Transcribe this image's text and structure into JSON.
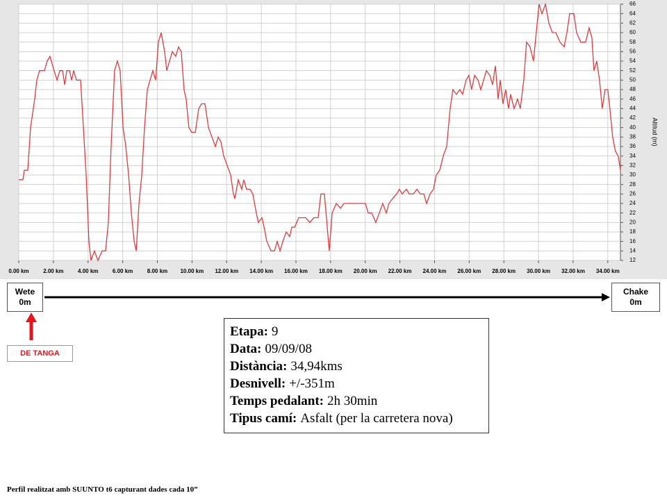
{
  "chart_data": {
    "type": "line",
    "color": "#e03a3e",
    "grid": true,
    "y_axis_label": "Altitud (m)",
    "x": [
      0,
      0.24,
      0.32,
      0.52,
      0.68,
      0.92,
      1.04,
      1.2,
      1.48,
      1.64,
      1.8,
      2.04,
      2.21,
      2.37,
      2.53,
      2.65,
      2.77,
      2.93,
      3.05,
      3.17,
      3.33,
      3.57,
      3.73,
      3.89,
      4.05,
      4.17,
      4.37,
      4.57,
      4.81,
      5.01,
      5.17,
      5.33,
      5.53,
      5.69,
      5.85,
      6.02,
      6.18,
      6.34,
      6.5,
      6.66,
      6.78,
      6.94,
      7.1,
      7.26,
      7.42,
      7.58,
      7.74,
      7.9,
      8.06,
      8.22,
      8.42,
      8.54,
      8.7,
      8.86,
      9.06,
      9.22,
      9.38,
      9.54,
      9.66,
      9.82,
      9.98,
      10.19,
      10.39,
      10.55,
      10.75,
      10.95,
      11.15,
      11.35,
      11.51,
      11.67,
      11.83,
      12.03,
      12.23,
      12.39,
      12.47,
      12.67,
      12.87,
      12.99,
      13.15,
      13.35,
      13.51,
      13.71,
      13.83,
      14.04,
      14.16,
      14.32,
      14.56,
      14.76,
      14.92,
      15.08,
      15.24,
      15.44,
      15.64,
      15.76,
      15.92,
      16.16,
      16.56,
      16.8,
      17.04,
      17.28,
      17.44,
      17.64,
      17.76,
      17.92,
      18.09,
      18.33,
      18.57,
      18.77,
      19.17,
      19.77,
      20.01,
      20.17,
      20.37,
      20.61,
      20.81,
      21.01,
      21.21,
      21.37,
      21.57,
      21.81,
      21.97,
      22.13,
      22.38,
      22.54,
      22.78,
      22.98,
      23.18,
      23.38,
      23.54,
      23.74,
      23.94,
      24.1,
      24.3,
      24.5,
      24.7,
      24.9,
      25.06,
      25.26,
      25.46,
      25.62,
      25.82,
      25.98,
      26.14,
      26.31,
      26.51,
      26.67,
      26.83,
      26.99,
      27.19,
      27.35,
      27.51,
      27.67,
      27.79,
      27.95,
      28.11,
      28.27,
      28.39,
      28.59,
      28.79,
      28.95,
      29.15,
      29.31,
      29.51,
      29.71,
      29.87,
      30.03,
      30.2,
      30.4,
      30.6,
      30.8,
      31,
      31.24,
      31.48,
      31.64,
      31.8,
      32.04,
      32.2,
      32.44,
      32.72,
      32.92,
      33.08,
      33.2,
      33.36,
      33.52,
      33.68,
      33.84,
      34,
      34.12,
      34.28,
      34.44,
      34.6,
      34.73
    ],
    "values": [
      29,
      29,
      31,
      31,
      40,
      46,
      50,
      52,
      52,
      54,
      55,
      52,
      50,
      52,
      52,
      49,
      52,
      52,
      50,
      52,
      50,
      50,
      40,
      30,
      16,
      12,
      14,
      12,
      14,
      14,
      20,
      36,
      52,
      54,
      52,
      40,
      36,
      30,
      22,
      16,
      14,
      24,
      30,
      40,
      48,
      50,
      52,
      50,
      58,
      60,
      56,
      52,
      54,
      56,
      55,
      57,
      56,
      48,
      46,
      40,
      39,
      39,
      44,
      45,
      45,
      40,
      38,
      36,
      38,
      37,
      34,
      32,
      30,
      26,
      25,
      29,
      27,
      29,
      27,
      27,
      26,
      22,
      20,
      21,
      19,
      16,
      14,
      14,
      16,
      14,
      16,
      18,
      17,
      19,
      19,
      21,
      21,
      20,
      21,
      21,
      26,
      26,
      21,
      14,
      22,
      24,
      23,
      24,
      24,
      24,
      24,
      22,
      22,
      20,
      22,
      24,
      22,
      24,
      25,
      26,
      27,
      26,
      27,
      26,
      26,
      27,
      26,
      26,
      24,
      26,
      27,
      30,
      31,
      34,
      36,
      44,
      48,
      47,
      48,
      47,
      50,
      51,
      48,
      51,
      50,
      48,
      50,
      52,
      51,
      49,
      53,
      46,
      50,
      45,
      48,
      44,
      47,
      44,
      46,
      44,
      50,
      58,
      57,
      54,
      60,
      66,
      64,
      66,
      62,
      60,
      60,
      58,
      57,
      60,
      64,
      64,
      60,
      58,
      58,
      61,
      59,
      52,
      54,
      50,
      44,
      48,
      48,
      44,
      38,
      35,
      34,
      31
    ],
    "xlim": [
      0,
      34.73
    ],
    "ylim": [
      12,
      66
    ],
    "yticks": [
      12,
      14,
      16,
      18,
      20,
      22,
      24,
      26,
      28,
      30,
      32,
      34,
      36,
      38,
      40,
      42,
      44,
      46,
      48,
      50,
      52,
      54,
      56,
      58,
      60,
      62,
      64,
      66
    ],
    "xticks": [
      {
        "value": 0,
        "label": "0.00 km"
      },
      {
        "value": 2,
        "label": "2.00 km"
      },
      {
        "value": 4,
        "label": "4.00 km"
      },
      {
        "value": 6,
        "label": "6.00 km"
      },
      {
        "value": 8,
        "label": "8.00 km"
      },
      {
        "value": 10,
        "label": "10.00 km"
      },
      {
        "value": 12,
        "label": "12.00 km"
      },
      {
        "value": 14,
        "label": "14.00 km"
      },
      {
        "value": 16,
        "label": "16.00 km"
      },
      {
        "value": 18,
        "label": "18.00 km"
      },
      {
        "value": 20,
        "label": "20.00 km"
      },
      {
        "value": 22,
        "label": "22.00 km"
      },
      {
        "value": 24,
        "label": "24.00 km"
      },
      {
        "value": 26,
        "label": "26.00 km"
      },
      {
        "value": 28,
        "label": "28.00 km"
      },
      {
        "value": 30,
        "label": "30.00 km"
      },
      {
        "value": 32,
        "label": "32.00 km"
      },
      {
        "value": 34,
        "label": "34.00 km"
      }
    ]
  },
  "route": {
    "start": {
      "name": "Wete",
      "elevation": "0m"
    },
    "end": {
      "name": "Chake",
      "elevation": "0m"
    },
    "marker": "DE TANGA"
  },
  "info": [
    {
      "label": "Etapa:",
      "value": "9"
    },
    {
      "label": "Data:",
      "value": "09/09/08"
    },
    {
      "label": "Distància:",
      "value": "34,94kms"
    },
    {
      "label": "Desnivell:",
      "value": "+/-351m"
    },
    {
      "label": "Temps pedalant:",
      "value": "2h 30min"
    },
    {
      "label": "Tipus camí:",
      "value": "Asfalt (per la carretera nova)"
    }
  ],
  "footer": "Perfil realitzat amb SUUNTO t6 capturant dades cada 10”"
}
